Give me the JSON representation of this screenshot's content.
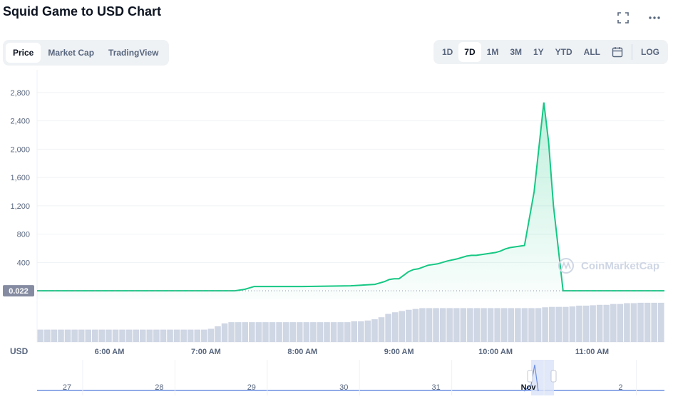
{
  "header": {
    "title": "Squid Game to USD Chart"
  },
  "tabs": [
    {
      "label": "Price"
    },
    {
      "label": "Market Cap"
    },
    {
      "label": "TradingView"
    }
  ],
  "ranges": [
    {
      "label": "1D"
    },
    {
      "label": "7D"
    },
    {
      "label": "1M"
    },
    {
      "label": "3M"
    },
    {
      "label": "1Y"
    },
    {
      "label": "YTD"
    },
    {
      "label": "ALL"
    }
  ],
  "log_label": "LOG",
  "icons": {
    "fullscreen": "fullscreen-icon",
    "more": "more-icon",
    "calendar": "calendar-icon"
  },
  "colors": {
    "line": "#16c784",
    "badge": "#858ca2",
    "volume": "#cfd6e4",
    "navigator": "#6d8fe0"
  },
  "watermark": "CoinMarketCap",
  "chart_data": {
    "type": "line",
    "title": "Squid Game to USD Chart",
    "y_unit_label": "USD",
    "yticks": [
      400,
      800,
      1200,
      1600,
      2000,
      2400,
      2800
    ],
    "ytick_labels": [
      "400",
      "800",
      "1,200",
      "1,600",
      "2,000",
      "2,400",
      "2,800"
    ],
    "ylim": [
      -120,
      3040
    ],
    "x_range": [
      5.25,
      11.75
    ],
    "xticks": [
      6,
      7,
      8,
      9,
      10,
      11
    ],
    "xtick_labels": [
      "6:00 AM",
      "7:00 AM",
      "8:00 AM",
      "9:00 AM",
      "10:00 AM",
      "11:00 AM"
    ],
    "current_price_label": "0.022",
    "grid": true,
    "series": [
      {
        "x": [
          5.25,
          6.5,
          7.3,
          7.4,
          7.5,
          8.0,
          8.5,
          8.75,
          8.85,
          8.9,
          8.95,
          9.0,
          9.05,
          9.1,
          9.15,
          9.2,
          9.3,
          9.4,
          9.5,
          9.6,
          9.7,
          9.75,
          9.8,
          9.9,
          10.0,
          10.05,
          10.1,
          10.15,
          10.2,
          10.3,
          10.4,
          10.5,
          10.55,
          10.6,
          10.7,
          11.0,
          11.5,
          11.75
        ],
        "y": [
          0.02,
          0.03,
          0.04,
          20,
          60,
          60,
          70,
          90,
          130,
          160,
          170,
          170,
          220,
          270,
          300,
          310,
          360,
          380,
          420,
          450,
          490,
          500,
          500,
          520,
          540,
          560,
          590,
          610,
          620,
          640,
          1400,
          2660,
          2100,
          1200,
          0.02,
          0.02,
          0.022,
          0.022
        ]
      }
    ],
    "volume": [
      30,
      30,
      30,
      30,
      30,
      30,
      30,
      30,
      30,
      30,
      30,
      30,
      30,
      30,
      30,
      30,
      30,
      30,
      30,
      30,
      30,
      30,
      30,
      30,
      30,
      32,
      38,
      45,
      48,
      48,
      48,
      48,
      48,
      48,
      48,
      48,
      48,
      48,
      48,
      48,
      48,
      48,
      48,
      48,
      48,
      48,
      50,
      50,
      52,
      55,
      60,
      68,
      72,
      75,
      78,
      80,
      82,
      82,
      82,
      82,
      82,
      82,
      82,
      82,
      82,
      82,
      82,
      82,
      82,
      82,
      82,
      82,
      82,
      82,
      84,
      85,
      85,
      85,
      86,
      88,
      88,
      89,
      90,
      90,
      92,
      92,
      94,
      94,
      95,
      95,
      95,
      95
    ],
    "navigator": {
      "labels": [
        "27",
        "28",
        "29",
        "30",
        "31",
        "Nov",
        "2"
      ]
    }
  }
}
